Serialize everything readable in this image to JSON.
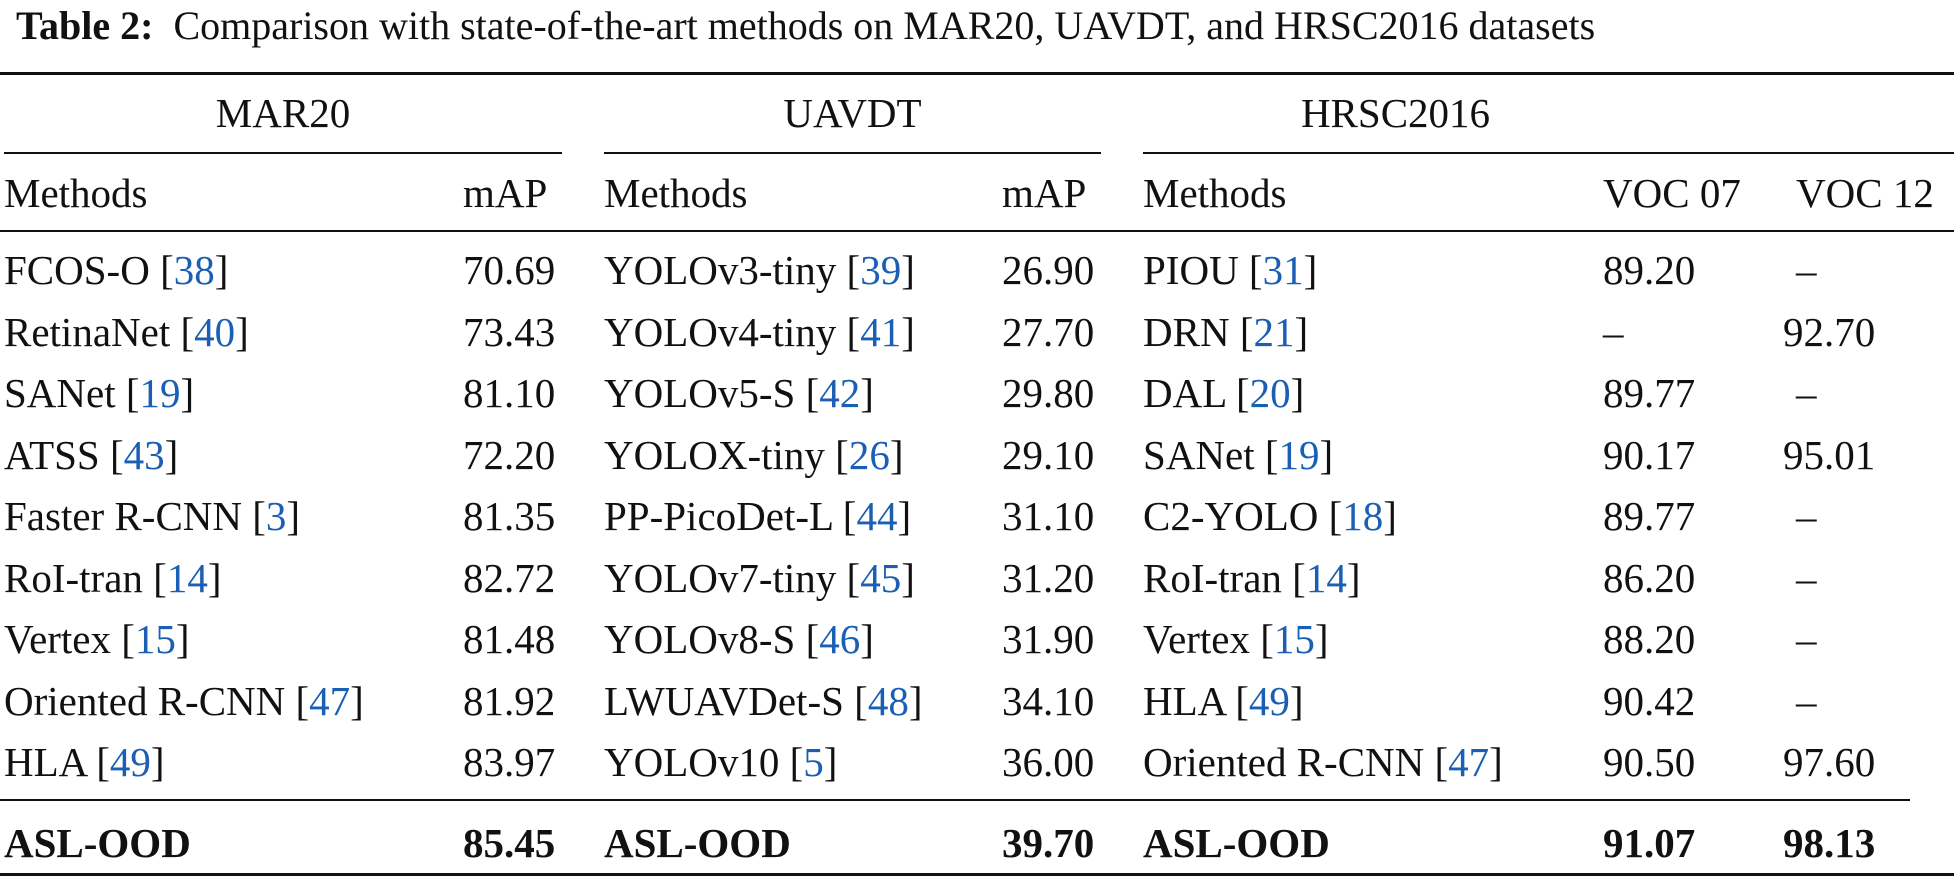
{
  "caption": {
    "label": "Table 2:",
    "text": "Comparison with state-of-the-art methods on MAR20, UAVDT, and HRSC2016 datasets"
  },
  "groups": {
    "mar20": "MAR20",
    "uavdt": "UAVDT",
    "hrsc": "HRSC2016"
  },
  "headers": {
    "methods": "Methods",
    "map": "mAP",
    "voc07": "VOC 07",
    "voc12": "VOC 12"
  },
  "rows": [
    {
      "m1": "FCOS-O [",
      "c1": "38",
      "v1": "70.69",
      "m2": "YOLOv3-tiny [",
      "c2": "39",
      "v2": "26.90",
      "m3": "PIOU [",
      "c3": "31",
      "v3a": "89.20",
      "v3b": "–"
    },
    {
      "m1": "RetinaNet [",
      "c1": "40",
      "v1": "73.43",
      "m2": "YOLOv4-tiny [",
      "c2": "41",
      "v2": "27.70",
      "m3": "DRN [",
      "c3": "21",
      "v3a": "–",
      "v3b": "92.70"
    },
    {
      "m1": "SANet [",
      "c1": "19",
      "v1": "81.10",
      "m2": "YOLOv5-S [",
      "c2": "42",
      "v2": "29.80",
      "m3": "DAL [",
      "c3": "20",
      "v3a": "89.77",
      "v3b": "–"
    },
    {
      "m1": "ATSS [",
      "c1": "43",
      "v1": "72.20",
      "m2": "YOLOX-tiny [",
      "c2": "26",
      "v2": "29.10",
      "m3": "SANet [",
      "c3": "19",
      "v3a": "90.17",
      "v3b": "95.01"
    },
    {
      "m1": "Faster R-CNN [",
      "c1": "3",
      "v1": "81.35",
      "m2": "PP-PicoDet-L [",
      "c2": "44",
      "v2": "31.10",
      "m3": "C2-YOLO [",
      "c3": "18",
      "v3a": "89.77",
      "v3b": "–"
    },
    {
      "m1": "RoI-tran [",
      "c1": "14",
      "v1": "82.72",
      "m2": "YOLOv7-tiny [",
      "c2": "45",
      "v2": "31.20",
      "m3": "RoI-tran [",
      "c3": "14",
      "v3a": "86.20",
      "v3b": "–"
    },
    {
      "m1": "Vertex [",
      "c1": "15",
      "v1": "81.48",
      "m2": "YOLOv8-S [",
      "c2": "46",
      "v2": "31.90",
      "m3": "Vertex [",
      "c3": "15",
      "v3a": "88.20",
      "v3b": "–"
    },
    {
      "m1": "Oriented R-CNN [",
      "c1": "47",
      "v1": "81.92",
      "m2": "LWUAVDet-S [",
      "c2": "48",
      "v2": "34.10",
      "m3": "HLA [",
      "c3": "49",
      "v3a": "90.42",
      "v3b": "–"
    },
    {
      "m1": "HLA [",
      "c1": "49",
      "v1": "83.97",
      "m2": "YOLOv10 [",
      "c2": "5",
      "v2": "36.00",
      "m3": "Oriented R-CNN [",
      "c3": "47",
      "v3a": "90.50",
      "v3b": "97.60"
    }
  ],
  "close_bracket": "]",
  "final": {
    "m1": "ASL-OOD",
    "v1": "85.45",
    "m2": "ASL-OOD",
    "v2": "39.70",
    "m3": "ASL-OOD",
    "v3a": "91.07",
    "v3b": "98.13"
  }
}
